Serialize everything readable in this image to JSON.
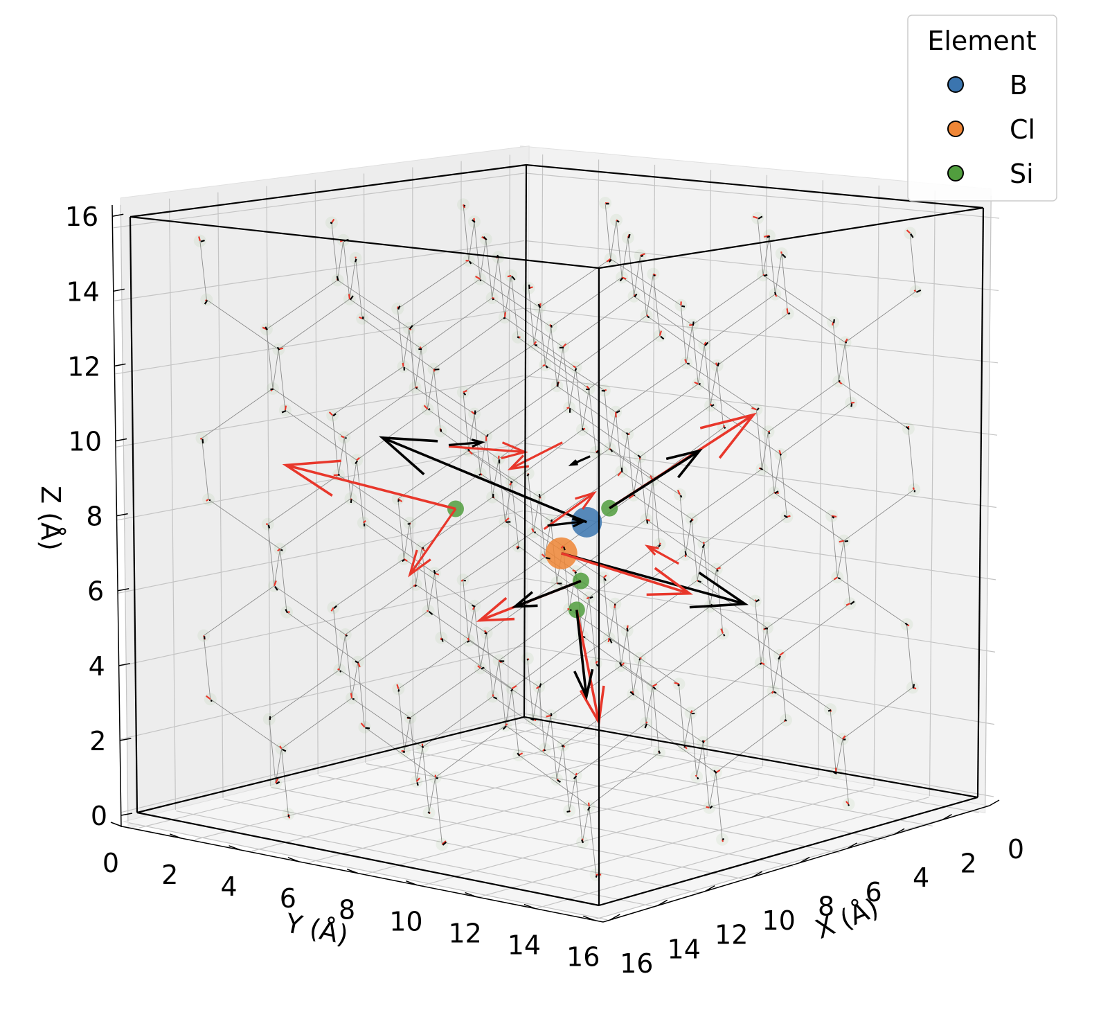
{
  "chart_data": {
    "type": "scatter",
    "subtype": "3d-scatter-with-force-arrows",
    "title": "",
    "xlabel": "X (Å)",
    "ylabel": "Y (Å)",
    "zlabel": "Z (Å)",
    "xlim": [
      0,
      16.3
    ],
    "ylim": [
      0,
      16.3
    ],
    "zlim": [
      0,
      16.3
    ],
    "xticks": [
      "0",
      "2",
      "4",
      "6",
      "8",
      "10",
      "12",
      "14",
      "16"
    ],
    "yticks": [
      "0",
      "2",
      "4",
      "6",
      "8",
      "10",
      "12",
      "14",
      "16"
    ],
    "zticks": [
      "0",
      "2",
      "4",
      "6",
      "8",
      "10",
      "12",
      "14",
      "16"
    ],
    "grid": true,
    "legend": {
      "title": "Element",
      "position": "top-right",
      "entries": [
        {
          "label": "B",
          "color": "#3b75af"
        },
        {
          "label": "Cl",
          "color": "#ef8636"
        },
        {
          "label": "Si",
          "color": "#519e3e"
        }
      ]
    },
    "colors": {
      "force_arrow": "#000000",
      "displacement_arrow": "#e8372b",
      "bond": "#8c8c8c"
    },
    "highlighted_atoms": [
      {
        "element": "B",
        "x": 8.4,
        "y": 7.4,
        "z": 7.9
      },
      {
        "element": "Cl",
        "x": 9.0,
        "y": 8.8,
        "z": 6.8
      },
      {
        "element": "Si",
        "x": 9.6,
        "y": 7.6,
        "z": 8.1
      },
      {
        "element": "Si",
        "x": 5.5,
        "y": 9.6,
        "z": 8.4
      },
      {
        "element": "Si",
        "x": 10.3,
        "y": 9.2,
        "z": 5.8
      },
      {
        "element": "Si",
        "x": 10.6,
        "y": 9.6,
        "z": 4.9
      }
    ],
    "background_atoms": {
      "element": "Si",
      "count": 214,
      "note": "faint lattice atoms with small force/displacement arrows"
    }
  }
}
